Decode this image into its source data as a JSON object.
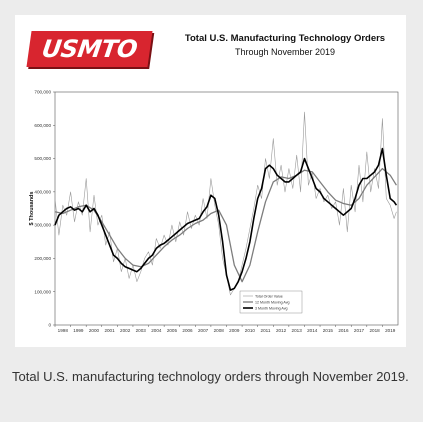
{
  "logo_text": "USMTO",
  "caption": "Total U.S. manufacturing technology orders through November 2019.",
  "colors": {
    "background": "#ececec",
    "logo_red": "#d8252f",
    "raw_series": "#9a9a9a",
    "avg12_series": "#7d7d7d",
    "avg3_series": "#000000"
  },
  "chart_data": {
    "type": "line",
    "title": "Total U.S. Manufacturing Technology Orders",
    "subtitle": "Through November 2019",
    "ylabel": "$ Thousands",
    "xlabel": "",
    "ylim": [
      0,
      700000
    ],
    "yticks": [
      0,
      100000,
      200000,
      300000,
      400000,
      500000,
      600000,
      700000
    ],
    "ytick_labels": [
      "0",
      "100,000",
      "200,000",
      "300,000",
      "400,000",
      "500,000",
      "600,000",
      "700,000"
    ],
    "xticks": [
      "1998",
      "1999",
      "2000",
      "2001",
      "2002",
      "2003",
      "2004",
      "2005",
      "2006",
      "2007",
      "2008",
      "2009",
      "2010",
      "2011",
      "2012",
      "2013",
      "2014",
      "2015",
      "2016",
      "2017",
      "2018",
      "2019"
    ],
    "grid": false,
    "legend_position": "bottom-right",
    "series": [
      {
        "name": "Total Order Value",
        "style": "thin-gray",
        "x": [
          1998.0,
          1998.25,
          1998.5,
          1998.75,
          1999.0,
          1999.25,
          1999.5,
          1999.75,
          2000.0,
          2000.25,
          2000.5,
          2000.75,
          2001.0,
          2001.25,
          2001.5,
          2001.75,
          2002.0,
          2002.25,
          2002.5,
          2002.75,
          2003.0,
          2003.25,
          2003.5,
          2003.75,
          2004.0,
          2004.25,
          2004.5,
          2004.75,
          2005.0,
          2005.25,
          2005.5,
          2005.75,
          2006.0,
          2006.25,
          2006.5,
          2006.75,
          2007.0,
          2007.25,
          2007.5,
          2007.75,
          2008.0,
          2008.25,
          2008.5,
          2008.75,
          2009.0,
          2009.25,
          2009.5,
          2009.75,
          2010.0,
          2010.25,
          2010.5,
          2010.75,
          2011.0,
          2011.25,
          2011.5,
          2011.75,
          2012.0,
          2012.25,
          2012.5,
          2012.75,
          2013.0,
          2013.25,
          2013.5,
          2013.75,
          2014.0,
          2014.25,
          2014.5,
          2014.75,
          2015.0,
          2015.25,
          2015.5,
          2015.75,
          2016.0,
          2016.25,
          2016.5,
          2016.75,
          2017.0,
          2017.25,
          2017.5,
          2017.75,
          2018.0,
          2018.25,
          2018.5,
          2018.75,
          2019.0,
          2019.25,
          2019.5,
          2019.75,
          2019.9
        ],
        "values": [
          380000,
          270000,
          360000,
          330000,
          400000,
          310000,
          370000,
          330000,
          440000,
          280000,
          390000,
          300000,
          330000,
          240000,
          280000,
          190000,
          230000,
          160000,
          200000,
          140000,
          180000,
          130000,
          160000,
          200000,
          220000,
          180000,
          260000,
          230000,
          270000,
          240000,
          300000,
          250000,
          310000,
          270000,
          340000,
          290000,
          330000,
          300000,
          380000,
          320000,
          440000,
          360000,
          300000,
          200000,
          150000,
          90000,
          110000,
          130000,
          180000,
          230000,
          290000,
          350000,
          420000,
          380000,
          500000,
          440000,
          560000,
          420000,
          480000,
          400000,
          470000,
          410000,
          510000,
          400000,
          640000,
          420000,
          460000,
          380000,
          410000,
          370000,
          390000,
          350000,
          370000,
          300000,
          410000,
          280000,
          420000,
          340000,
          480000,
          370000,
          520000,
          400000,
          470000,
          410000,
          620000,
          380000,
          360000,
          320000,
          340000
        ]
      },
      {
        "name": "12 Month Moving Avg",
        "style": "gray",
        "x": [
          1998.0,
          1998.5,
          1999.0,
          1999.5,
          2000.0,
          2000.5,
          2001.0,
          2001.5,
          2002.0,
          2002.5,
          2003.0,
          2003.5,
          2004.0,
          2004.5,
          2005.0,
          2005.5,
          2006.0,
          2006.5,
          2007.0,
          2007.5,
          2008.0,
          2008.5,
          2009.0,
          2009.5,
          2010.0,
          2010.5,
          2011.0,
          2011.5,
          2012.0,
          2012.5,
          2013.0,
          2013.5,
          2014.0,
          2014.5,
          2015.0,
          2015.5,
          2016.0,
          2016.5,
          2017.0,
          2017.5,
          2018.0,
          2018.5,
          2019.0,
          2019.5,
          2019.9
        ],
        "values": [
          340000,
          335000,
          345000,
          355000,
          360000,
          345000,
          310000,
          270000,
          230000,
          200000,
          180000,
          175000,
          185000,
          210000,
          235000,
          255000,
          270000,
          290000,
          305000,
          315000,
          335000,
          345000,
          300000,
          180000,
          130000,
          180000,
          280000,
          370000,
          430000,
          445000,
          440000,
          450000,
          465000,
          460000,
          430000,
          400000,
          375000,
          365000,
          360000,
          380000,
          420000,
          445000,
          470000,
          450000,
          420000
        ]
      },
      {
        "name": "3 Month Moving Avg",
        "style": "thick-black",
        "x": [
          1998.0,
          1998.25,
          1998.5,
          1998.75,
          1999.0,
          1999.25,
          1999.5,
          1999.75,
          2000.0,
          2000.25,
          2000.5,
          2000.75,
          2001.0,
          2001.25,
          2001.5,
          2001.75,
          2002.0,
          2002.25,
          2002.5,
          2002.75,
          2003.0,
          2003.25,
          2003.5,
          2003.75,
          2004.0,
          2004.25,
          2004.5,
          2004.75,
          2005.0,
          2005.25,
          2005.5,
          2005.75,
          2006.0,
          2006.25,
          2006.5,
          2006.75,
          2007.0,
          2007.25,
          2007.5,
          2007.75,
          2008.0,
          2008.25,
          2008.5,
          2008.75,
          2009.0,
          2009.25,
          2009.5,
          2009.75,
          2010.0,
          2010.25,
          2010.5,
          2010.75,
          2011.0,
          2011.25,
          2011.5,
          2011.75,
          2012.0,
          2012.25,
          2012.5,
          2012.75,
          2013.0,
          2013.25,
          2013.5,
          2013.75,
          2014.0,
          2014.25,
          2014.5,
          2014.75,
          2015.0,
          2015.25,
          2015.5,
          2015.75,
          2016.0,
          2016.25,
          2016.5,
          2016.75,
          2017.0,
          2017.25,
          2017.5,
          2017.75,
          2018.0,
          2018.25,
          2018.5,
          2018.75,
          2019.0,
          2019.25,
          2019.5,
          2019.75,
          2019.9
        ],
        "values": [
          300000,
          330000,
          340000,
          350000,
          355000,
          345000,
          350000,
          340000,
          360000,
          340000,
          350000,
          330000,
          300000,
          270000,
          240000,
          210000,
          200000,
          185000,
          175000,
          170000,
          165000,
          160000,
          170000,
          185000,
          200000,
          210000,
          230000,
          240000,
          245000,
          255000,
          265000,
          275000,
          285000,
          295000,
          305000,
          310000,
          315000,
          320000,
          340000,
          355000,
          390000,
          380000,
          330000,
          250000,
          150000,
          105000,
          110000,
          130000,
          160000,
          200000,
          250000,
          320000,
          380000,
          410000,
          470000,
          480000,
          470000,
          450000,
          440000,
          430000,
          430000,
          440000,
          450000,
          460000,
          500000,
          470000,
          440000,
          410000,
          400000,
          380000,
          370000,
          360000,
          350000,
          340000,
          330000,
          340000,
          350000,
          380000,
          420000,
          440000,
          440000,
          450000,
          460000,
          480000,
          530000,
          450000,
          380000,
          370000,
          360000
        ]
      }
    ]
  }
}
